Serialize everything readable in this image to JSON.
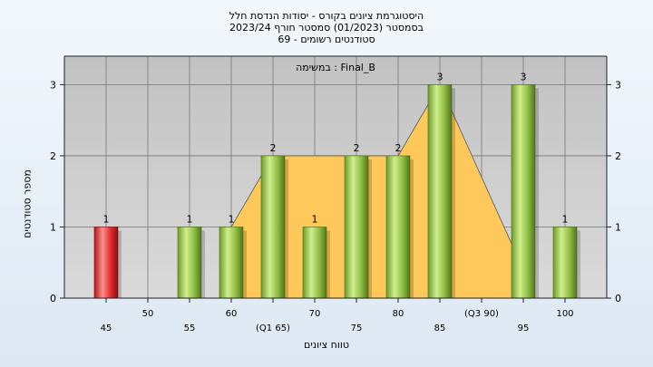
{
  "chart_data": {
    "type": "bar",
    "title_lines": [
      "היסטוגרמת ציונים בקורס - יסודות הנדסת חלל",
      "בסמסטר  (01/2023)  סמסטר חורף 2023/24",
      "סטודנטים רשומים - 69"
    ],
    "subtitle": "במשימה : Final_B",
    "ylabel": "מספר סטודנטים",
    "xlabel": "טווח ציונים",
    "ylim": [
      0,
      3.4
    ],
    "y_ticks": [
      0,
      1,
      2,
      3
    ],
    "grid": true,
    "x_tick_labels": [
      {
        "value": 45,
        "label": "45",
        "row": "low"
      },
      {
        "value": 50,
        "label": "50",
        "row": "high"
      },
      {
        "value": 55,
        "label": "55",
        "row": "low"
      },
      {
        "value": 60,
        "label": "60",
        "row": "high"
      },
      {
        "value": 65,
        "label": "(Q1 65)",
        "row": "low"
      },
      {
        "value": 70,
        "label": "70",
        "row": "high"
      },
      {
        "value": 75,
        "label": "75",
        "row": "low"
      },
      {
        "value": 80,
        "label": "80",
        "row": "high"
      },
      {
        "value": 85,
        "label": "85",
        "row": "low"
      },
      {
        "value": 90,
        "label": "(Q3 90)",
        "row": "high"
      },
      {
        "value": 95,
        "label": "95",
        "row": "low"
      },
      {
        "value": 100,
        "label": "100",
        "row": "high"
      }
    ],
    "bars": [
      {
        "x": 45,
        "value": 1,
        "highlight": true
      },
      {
        "x": 55,
        "value": 1,
        "highlight": false
      },
      {
        "x": 60,
        "value": 1,
        "highlight": false
      },
      {
        "x": 65,
        "value": 2,
        "highlight": false
      },
      {
        "x": 70,
        "value": 1,
        "highlight": false
      },
      {
        "x": 75,
        "value": 2,
        "highlight": false
      },
      {
        "x": 80,
        "value": 2,
        "highlight": false
      },
      {
        "x": 85,
        "value": 3,
        "highlight": false
      },
      {
        "x": 95,
        "value": 3,
        "highlight": false
      },
      {
        "x": 100,
        "value": 1,
        "highlight": false
      }
    ],
    "area": [
      [
        60,
        1
      ],
      [
        65,
        2
      ],
      [
        80,
        2
      ],
      [
        85,
        3
      ],
      [
        95,
        0.4
      ],
      [
        95,
        0
      ]
    ],
    "colors": {
      "plot_bg": "#c9c9c9",
      "bar_green": "#8fc043",
      "bar_red": "#e02a2a",
      "area_fill": "#ffc85a"
    }
  }
}
